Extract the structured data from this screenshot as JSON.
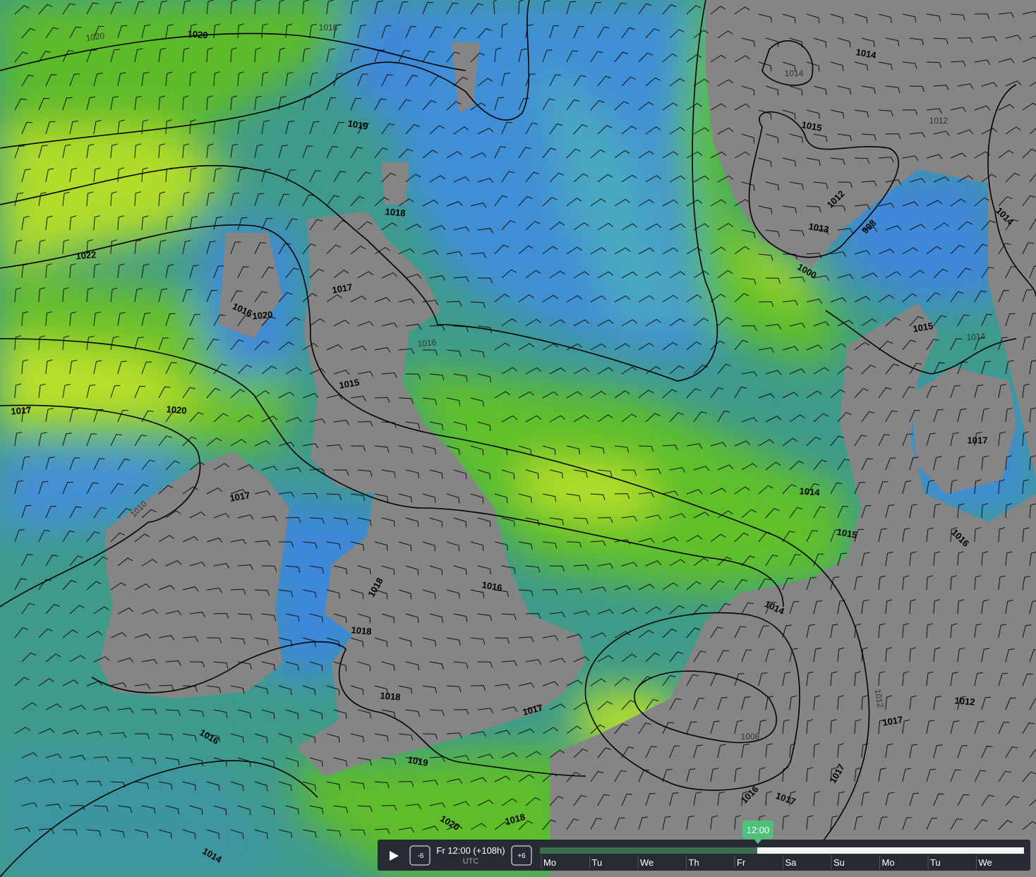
{
  "map": {
    "isobar_labels": [
      "1020",
      "1020",
      "1018",
      "1019",
      "1018",
      "1022",
      "1017",
      "1016",
      "1020",
      "1015",
      "1016",
      "1020",
      "1017",
      "1017",
      "1010",
      "1018",
      "1018",
      "1016",
      "1018",
      "1017",
      "1019",
      "1016",
      "1020",
      "1018",
      "1014",
      "1014",
      "1015",
      "1014",
      "1016",
      "1017",
      "1015",
      "1014",
      "1012",
      "1013",
      "998",
      "1000",
      "1015",
      "1014",
      "1014",
      "1012",
      "1014",
      "1008",
      "1012",
      "1017",
      "1017",
      "1016",
      "1017",
      "1012"
    ]
  },
  "timeline": {
    "time": "Fr 12:00 (+108h)",
    "timezone": "UTC",
    "current": "12:00",
    "step_back": "-6",
    "step_forward": "+6",
    "days": [
      "Mo",
      "Tu",
      "We",
      "Th",
      "Fr",
      "Sa",
      "Su",
      "Mo",
      "Tu",
      "We"
    ]
  }
}
